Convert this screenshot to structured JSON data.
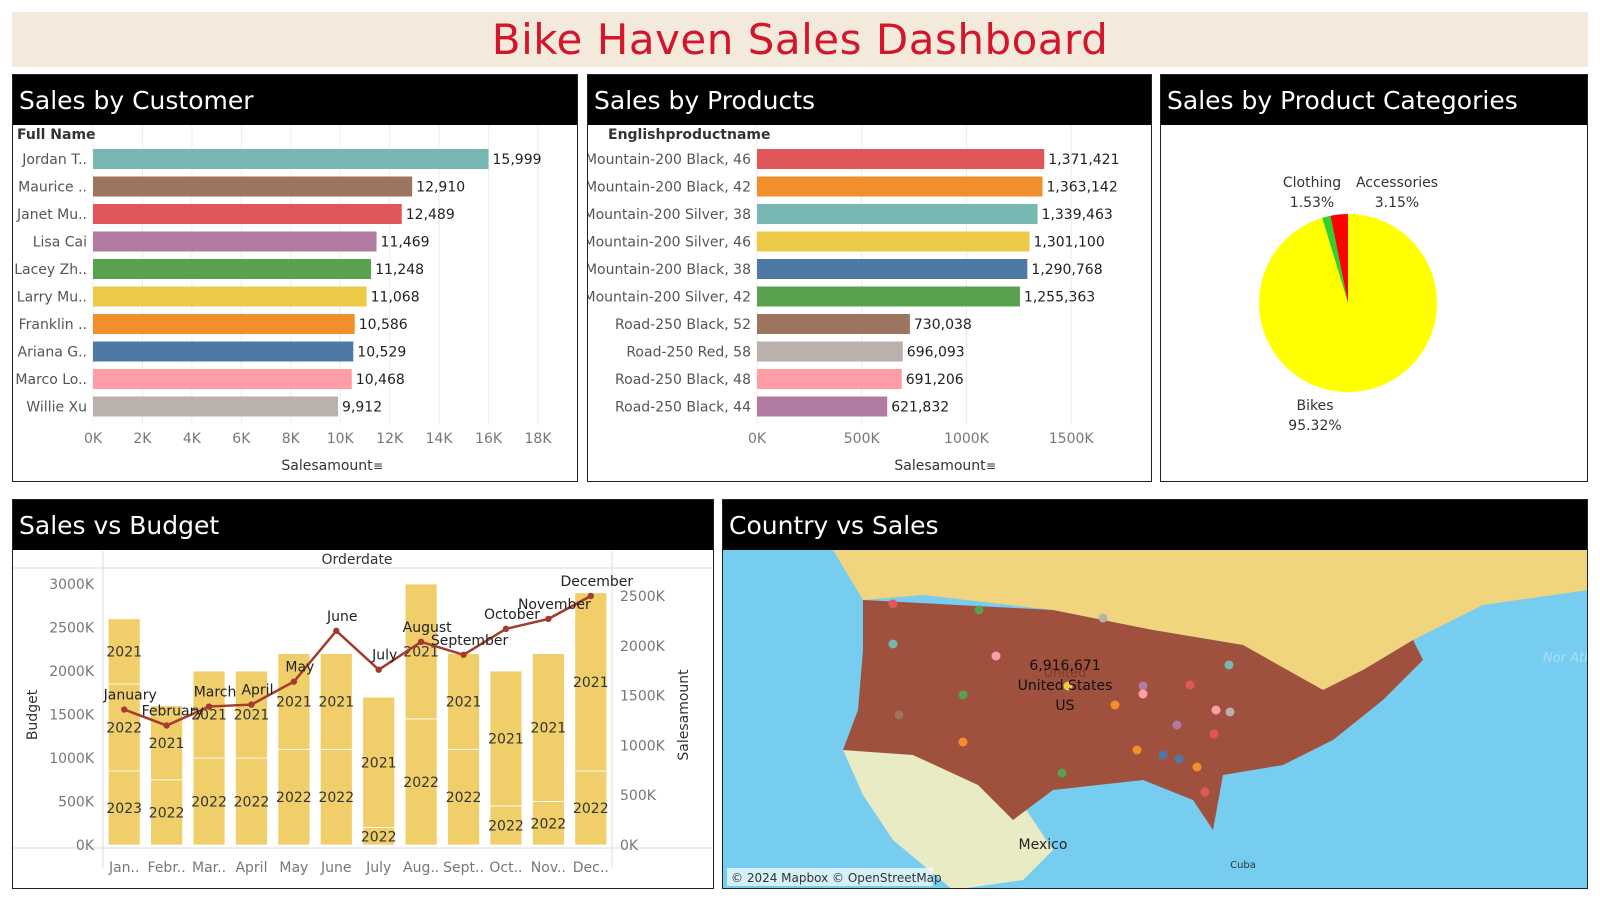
{
  "dashboard": {
    "title": "Bike Haven Sales Dashboard"
  },
  "panels": {
    "customer": "Sales by Customer",
    "products": "Sales by Products",
    "categories": "Sales by Product Categories",
    "budget": "Sales vs Budget",
    "country": "Country vs Sales"
  },
  "colors": {
    "title": "#d3162c",
    "banner": "#f3eadb",
    "palette": [
      "#76b7b2",
      "#9c755f",
      "#e15759",
      "#b07aa1",
      "#59a14f",
      "#edc948",
      "#f28e2b",
      "#4e79a7",
      "#ff9da7",
      "#bab0ac"
    ],
    "budget_bar": "#f0cf6b",
    "sales_line": "#a33b2e",
    "ocean": "#76cdef",
    "land": "#f0d47e",
    "us": "#a0513e"
  },
  "chart_data": [
    {
      "id": "customer",
      "type": "bar",
      "orientation": "horizontal",
      "row_header": "Full Name",
      "categories": [
        "Jordan T..",
        "Maurice ..",
        "Janet Mu..",
        "Lisa Cai",
        "Lacey Zh..",
        "Larry Mu..",
        "Franklin ..",
        "Ariana G..",
        "Marco Lo..",
        "Willie Xu"
      ],
      "values": [
        15999,
        12910,
        12489,
        11469,
        11248,
        11068,
        10586,
        10529,
        10468,
        9912
      ],
      "value_labels": [
        "15,999",
        "12,910",
        "12,489",
        "11,469",
        "11,248",
        "11,068",
        "10,586",
        "10,529",
        "10,468",
        "9,912"
      ],
      "xlabel": "Salesamount",
      "xlim": [
        0,
        18000
      ],
      "ticks": [
        0,
        2000,
        4000,
        6000,
        8000,
        10000,
        12000,
        14000,
        16000,
        18000
      ],
      "tick_labels": [
        "0K",
        "2K",
        "4K",
        "6K",
        "8K",
        "10K",
        "12K",
        "14K",
        "16K",
        "18K"
      ],
      "grid": true
    },
    {
      "id": "products",
      "type": "bar",
      "orientation": "horizontal",
      "row_header": "Englishproductname",
      "categories": [
        "Mountain-200 Black, 46",
        "Mountain-200 Black, 42",
        "Mountain-200 Silver, 38",
        "Mountain-200 Silver, 46",
        "Mountain-200 Black, 38",
        "Mountain-200 Silver, 42",
        "Road-250 Black, 52",
        "Road-250 Red, 58",
        "Road-250 Black, 48",
        "Road-250 Black, 44"
      ],
      "values": [
        1371421,
        1363142,
        1339463,
        1301100,
        1290768,
        1255363,
        730038,
        696093,
        691206,
        621832
      ],
      "value_labels": [
        "1,371,421",
        "1,363,142",
        "1,339,463",
        "1,301,100",
        "1,290,768",
        "1,255,363",
        "730,038",
        "696,093",
        "691,206",
        "621,832"
      ],
      "colors": [
        "#e15759",
        "#f28e2b",
        "#76b7b2",
        "#edc948",
        "#4e79a7",
        "#59a14f",
        "#9c755f",
        "#bab0ac",
        "#ff9da7",
        "#b07aa1"
      ],
      "xlabel": "Salesamount",
      "xlim": [
        0,
        1800000
      ],
      "ticks": [
        0,
        500000,
        1000000,
        1500000
      ],
      "tick_labels": [
        "0K",
        "500K",
        "1000K",
        "1500K"
      ],
      "grid": true
    },
    {
      "id": "categories",
      "type": "pie",
      "slices": [
        {
          "name": "Bikes",
          "value": 95.32,
          "label": "95.32%",
          "color": "#ffff00"
        },
        {
          "name": "Clothing",
          "value": 1.53,
          "label": "1.53%",
          "color": "#2ed12e"
        },
        {
          "name": "Accessories",
          "value": 3.15,
          "label": "3.15%",
          "color": "#ff0000"
        }
      ]
    },
    {
      "id": "budget",
      "type": "bar",
      "subtype": "stacked bar with line overlay",
      "column_header": "Orderdate",
      "categories": [
        "Jan..",
        "Febr..",
        "Mar..",
        "April",
        "May",
        "June",
        "July",
        "Aug..",
        "Sept..",
        "Oct..",
        "Nov..",
        "Dec.."
      ],
      "line_labels": [
        "January",
        "February",
        "March",
        "April",
        "May",
        "June",
        "July",
        "August",
        "September",
        "October",
        "November",
        "December"
      ],
      "series": [
        {
          "name": "Budget",
          "axis": "left",
          "segments": [
            {
              "label": "2023",
              "values": [
                850000,
                0,
                0,
                0,
                0,
                0,
                0,
                0,
                0,
                0,
                0,
                0
              ]
            },
            {
              "label": "2022",
              "values": [
                1000000,
                750000,
                1000000,
                1000000,
                1100000,
                1100000,
                200000,
                1450000,
                1100000,
                450000,
                500000,
                850000
              ]
            },
            {
              "label": "2021",
              "values": [
                750000,
                850000,
                1000000,
                1000000,
                1100000,
                1100000,
                1500000,
                1550000,
                1100000,
                1550000,
                1700000,
                2050000
              ]
            }
          ]
        },
        {
          "name": "Salesamount",
          "axis": "right",
          "values": [
            1360000,
            1200000,
            1390000,
            1410000,
            1640000,
            2150000,
            1760000,
            2040000,
            1910000,
            2170000,
            2270000,
            2500000
          ]
        }
      ],
      "ylabel": "Budget",
      "y2label": "Salesamount",
      "ylim": [
        0,
        3000000
      ],
      "y2lim": [
        0,
        2500000
      ],
      "y_tick_labels": [
        "0K",
        "500K",
        "1000K",
        "1500K",
        "2000K",
        "2500K",
        "3000K"
      ],
      "y2_tick_labels": [
        "0K",
        "500K",
        "1000K",
        "1500K",
        "2000K",
        "2500K"
      ]
    }
  ],
  "map": {
    "label_value": "6,916,671",
    "label_country": "United States",
    "label_code": "US",
    "label_faint": "United",
    "place_mexico": "Mexico",
    "place_cuba": "Cuba",
    "ocean_label": "Nor Atla Oce",
    "attribution": "© 2024 Mapbox © OpenStreetMap",
    "dot_colors": [
      "#e15759",
      "#59a14f",
      "#bab0ac",
      "#76b7b2",
      "#ff9da7",
      "#59a14f",
      "#b07aa1",
      "#edc948",
      "#9c755f",
      "#e15759",
      "#f28e2b",
      "#4e79a7",
      "#76b7b2",
      "#ff9da7",
      "#f28e2b",
      "#e15759",
      "#4e79a7",
      "#f28e2b",
      "#59a14f",
      "#e15759",
      "#bab0ac",
      "#ff9da7",
      "#b07aa1",
      "#f28e2b"
    ]
  }
}
